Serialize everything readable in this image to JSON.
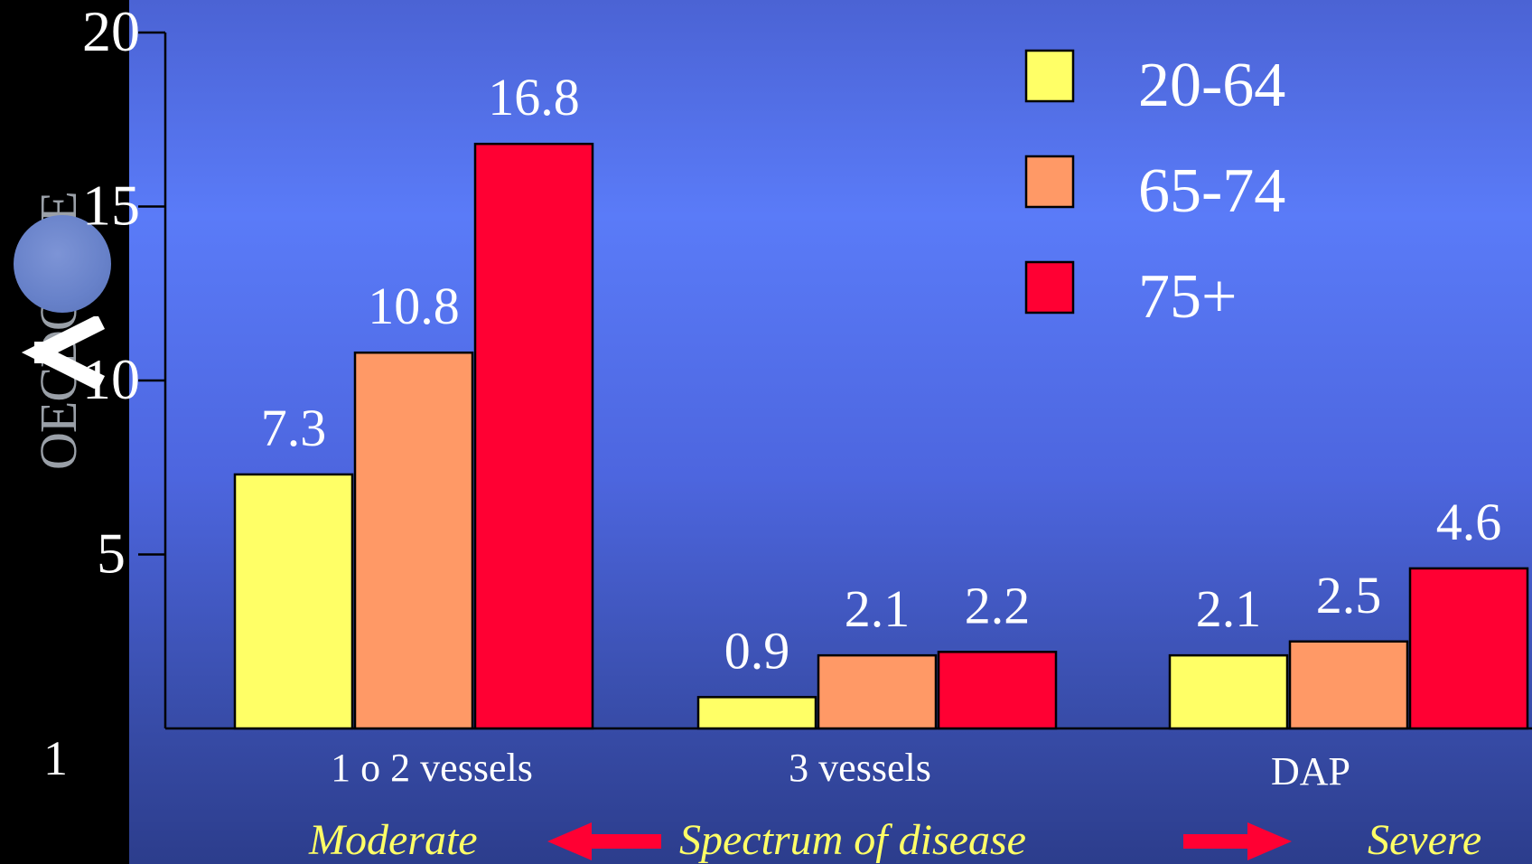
{
  "slide_number": "1",
  "logo": {
    "text": "OECD OCDE"
  },
  "chart_data": {
    "type": "bar",
    "categories": [
      "1 o 2 vessels",
      "3 vessels",
      "DAP"
    ],
    "series": [
      {
        "name": "20-64",
        "values": [
          7.3,
          0.9,
          2.1
        ],
        "color": "#ffff66"
      },
      {
        "name": "65-74",
        "values": [
          10.8,
          2.1,
          2.5
        ],
        "color": "#ff9966"
      },
      {
        "name": "75+",
        "values": [
          16.8,
          2.2,
          4.6
        ],
        "color": "#ff0033"
      }
    ],
    "value_labels": [
      [
        "7.3",
        "0.9",
        "2.1"
      ],
      [
        "10.8",
        "2.1",
        "2.5"
      ],
      [
        "16.8",
        "2.2",
        "4.6"
      ]
    ],
    "y_ticks": [
      "5",
      "10",
      "15",
      "20"
    ],
    "y_tick_values": [
      5,
      10,
      15,
      20
    ],
    "ylim": [
      0,
      20
    ],
    "legend_position": "top-right",
    "title": "",
    "xlabel": "",
    "ylabel": "",
    "grid": false
  },
  "spectrum": {
    "left": "Moderate",
    "center": "Spectrum of disease",
    "right": "Severe",
    "arrow_color": "#ff0033"
  }
}
